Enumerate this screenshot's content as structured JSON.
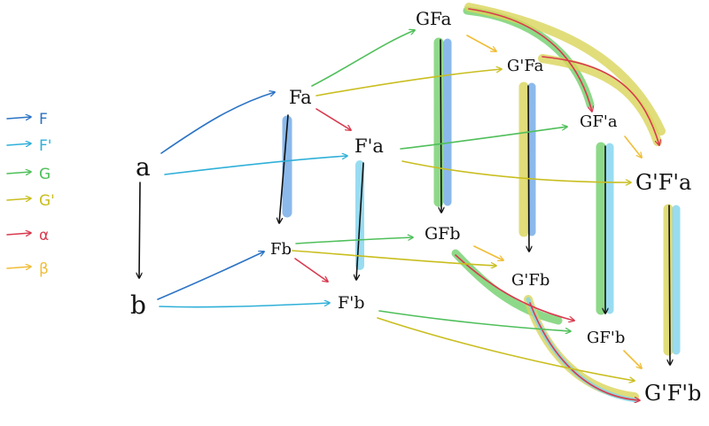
{
  "colors": {
    "F": "#2b73c4",
    "F_prime": "#2fb0d8",
    "G": "#4fbf5a",
    "G_prime": "#c9be1f",
    "alpha": "#d83a4e",
    "beta": "#f0bd37",
    "black": "#111111",
    "blue_band": "#6ea7e6",
    "green_band": "#72cf6c",
    "cyan_band": "#7fd3ee",
    "yellow_band": "#d9d45a"
  },
  "legend": [
    {
      "key": "F",
      "label": "F",
      "color": "#2b73c4"
    },
    {
      "key": "F_prime",
      "label": "F'",
      "color": "#2fb0d8"
    },
    {
      "key": "G",
      "label": "G",
      "color": "#4fbf5a"
    },
    {
      "key": "G_prime",
      "label": "G'",
      "color": "#c9be1f"
    },
    {
      "key": "alpha",
      "label": "α",
      "color": "#d83a4e"
    },
    {
      "key": "beta",
      "label": "β",
      "color": "#f0bd37"
    }
  ],
  "nodes": {
    "a": "a",
    "b": "b",
    "Fa": "Fa",
    "Fb": "Fb",
    "F'a": "F'a",
    "F'b": "F'b",
    "GFa": "GFa",
    "GFb": "GFb",
    "G'Fa": "G'Fa",
    "G'Fb": "G'Fb",
    "GF'a": "GF'a",
    "GF'b": "GF'b",
    "G'F'a": "G'F'a",
    "G'F'b": "G'F'b"
  }
}
